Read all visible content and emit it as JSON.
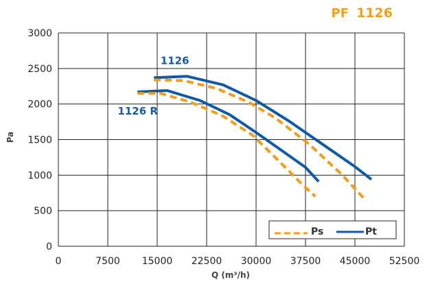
{
  "chart_data": {
    "type": "line",
    "title_prefix": "PF",
    "title_main": "1126",
    "xlabel": "Q (m³/h)",
    "ylabel": "Pa",
    "xlim": [
      0,
      52500
    ],
    "ylim": [
      0,
      3000
    ],
    "x_ticks": [
      0,
      7500,
      15000,
      22500,
      30000,
      37500,
      45000,
      52500
    ],
    "y_ticks": [
      0,
      500,
      1000,
      1500,
      2000,
      2500,
      3000
    ],
    "grid": true,
    "legend": {
      "position": "bottom-right",
      "entries": [
        "Ps",
        "Pt"
      ]
    },
    "curve_labels": [
      {
        "text": "1126",
        "x": 15500,
        "y": 2560
      },
      {
        "text": "1126 R",
        "x": 9000,
        "y": 1850
      }
    ],
    "series": [
      {
        "name": "Pt",
        "style": "solid",
        "color": "#0f5aa5",
        "x": [
          14500,
          19500,
          25000,
          30000,
          35000,
          40000,
          45000,
          47500
        ],
        "y": [
          2370,
          2390,
          2270,
          2050,
          1760,
          1440,
          1120,
          940
        ]
      },
      {
        "name": "Ps",
        "style": "dashed",
        "color": "#f39c1a",
        "x": [
          14500,
          19000,
          24000,
          29000,
          33000,
          38000,
          43000,
          46500
        ],
        "y": [
          2340,
          2330,
          2220,
          2020,
          1800,
          1440,
          1010,
          660
        ]
      },
      {
        "name": "Pt",
        "style": "solid",
        "color": "#0f5aa5",
        "x": [
          12000,
          16500,
          21500,
          26000,
          30000,
          34000,
          37500,
          39500
        ],
        "y": [
          2170,
          2190,
          2050,
          1850,
          1600,
          1340,
          1110,
          910
        ]
      },
      {
        "name": "Ps",
        "style": "dashed",
        "color": "#f39c1a",
        "x": [
          12000,
          15500,
          20000,
          25000,
          29500,
          34000,
          37000,
          39000
        ],
        "y": [
          2150,
          2150,
          2030,
          1830,
          1560,
          1150,
          870,
          700
        ]
      }
    ]
  }
}
